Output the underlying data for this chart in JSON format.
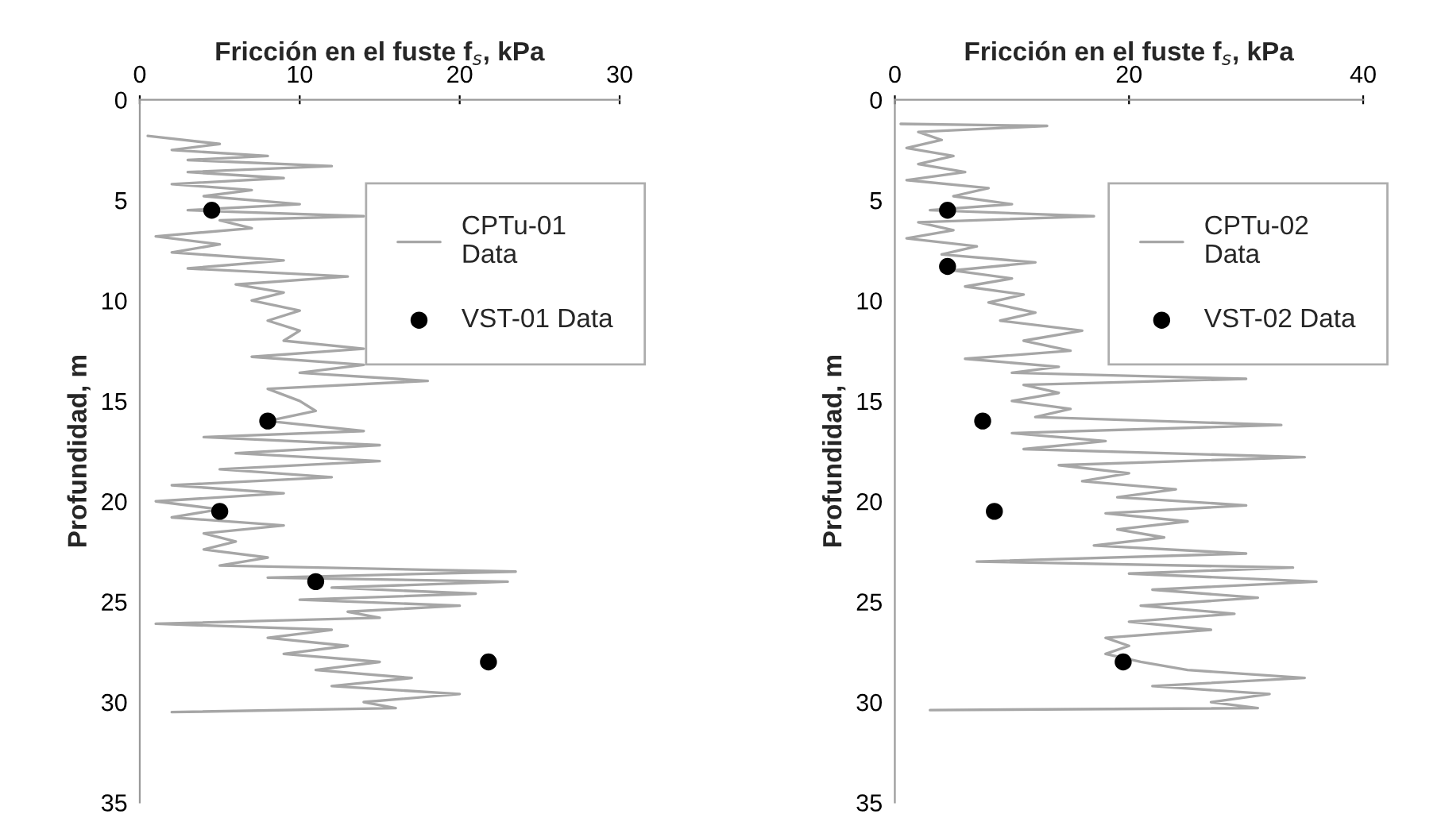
{
  "chart_data": [
    {
      "type": "line",
      "xlabel": "Fricción en el fuste f$_{s}$, kPa",
      "ylabel": "Profundidad, m",
      "xlim": [
        0,
        30
      ],
      "xticks": [
        0,
        10,
        20,
        30
      ],
      "ylim": [
        35,
        0
      ],
      "yticks": [
        0,
        5,
        10,
        15,
        20,
        25,
        30,
        35
      ],
      "grid": false,
      "legend": "top right",
      "series": [
        {
          "name": "CPTu-01\nData",
          "color": "#a6a6a6",
          "marker": "none",
          "x": [
            0.5,
            5,
            2,
            8,
            3,
            12,
            3,
            9,
            2,
            7,
            4,
            10,
            3,
            14,
            5,
            7,
            1,
            5,
            2,
            9,
            3,
            13,
            6,
            9,
            7,
            10,
            8,
            10,
            9,
            14,
            7,
            14,
            10,
            18,
            8,
            10,
            11,
            8,
            14,
            4,
            15,
            6,
            15,
            5,
            12,
            2,
            9,
            1,
            5,
            2,
            9,
            4,
            6,
            4,
            8,
            5,
            23.5,
            8,
            23,
            12,
            21,
            10,
            20,
            13,
            15,
            1,
            12,
            8,
            13,
            9,
            15,
            11,
            17,
            12,
            20,
            14,
            16,
            2
          ],
          "values": [
            1.8,
            2.2,
            2.5,
            2.8,
            3.0,
            3.3,
            3.6,
            3.9,
            4.2,
            4.5,
            4.8,
            5.2,
            5.5,
            5.8,
            6.0,
            6.4,
            6.8,
            7.2,
            7.6,
            8.0,
            8.4,
            8.8,
            9.2,
            9.6,
            10.0,
            10.5,
            11.0,
            11.5,
            12.0,
            12.4,
            12.8,
            13.2,
            13.6,
            14.0,
            14.4,
            15.0,
            15.5,
            16.0,
            16.5,
            16.8,
            17.2,
            17.6,
            18.0,
            18.4,
            18.8,
            19.2,
            19.6,
            20.0,
            20.4,
            20.8,
            21.2,
            21.6,
            22.0,
            22.4,
            22.8,
            23.2,
            23.5,
            23.8,
            24.0,
            24.3,
            24.6,
            24.9,
            25.2,
            25.5,
            25.8,
            26.1,
            26.4,
            26.8,
            27.2,
            27.6,
            28.0,
            28.4,
            28.8,
            29.2,
            29.6,
            30.0,
            30.3,
            30.5
          ]
        },
        {
          "name": "VST-01 Data",
          "type": "scatter",
          "color": "#000000",
          "marker": "circle",
          "x": [
            4.5,
            8,
            5,
            11,
            21.8
          ],
          "values": [
            5.5,
            16,
            20.5,
            24,
            28
          ]
        }
      ]
    },
    {
      "type": "line",
      "xlabel": "Fricción en el fuste f$_{s}$, kPa",
      "ylabel": "Profundidad, m",
      "xlim": [
        0,
        40
      ],
      "xticks": [
        0,
        20,
        40
      ],
      "ylim": [
        35,
        0
      ],
      "yticks": [
        0,
        5,
        10,
        15,
        20,
        25,
        30,
        35
      ],
      "grid": false,
      "legend": "top right",
      "series": [
        {
          "name": "CPTu-02\nData",
          "color": "#a6a6a6",
          "marker": "none",
          "x": [
            0.5,
            13,
            2,
            4,
            1,
            5,
            2,
            6,
            1,
            8,
            5,
            10,
            3,
            17,
            2,
            5,
            1,
            7,
            4,
            12,
            5,
            10,
            6,
            11,
            8,
            12,
            9,
            16,
            11,
            15,
            6,
            14,
            10,
            30,
            11,
            14,
            10,
            15,
            12,
            33,
            10,
            18,
            11,
            35,
            14,
            20,
            16,
            24,
            19,
            30,
            18,
            25,
            19,
            23,
            17,
            30,
            7,
            34,
            20,
            36,
            22,
            31,
            21,
            29,
            20,
            27,
            18,
            20,
            18,
            21,
            25,
            35,
            22,
            32,
            27,
            31,
            3
          ],
          "values": [
            1.2,
            1.3,
            1.6,
            2.0,
            2.4,
            2.8,
            3.2,
            3.6,
            4.0,
            4.4,
            4.8,
            5.2,
            5.5,
            5.8,
            6.1,
            6.5,
            6.9,
            7.3,
            7.7,
            8.1,
            8.5,
            8.9,
            9.3,
            9.7,
            10.1,
            10.6,
            11.0,
            11.5,
            12.0,
            12.5,
            12.9,
            13.3,
            13.6,
            13.9,
            14.2,
            14.6,
            15.0,
            15.4,
            15.8,
            16.2,
            16.6,
            17.0,
            17.4,
            17.8,
            18.2,
            18.6,
            19.0,
            19.4,
            19.8,
            20.2,
            20.6,
            21.0,
            21.4,
            21.8,
            22.2,
            22.6,
            23.0,
            23.3,
            23.6,
            24.0,
            24.4,
            24.8,
            25.2,
            25.6,
            26.0,
            26.4,
            26.8,
            27.2,
            27.6,
            28.0,
            28.4,
            28.8,
            29.2,
            29.6,
            30.0,
            30.3,
            30.4
          ]
        },
        {
          "name": "VST-02 Data",
          "type": "scatter",
          "color": "#000000",
          "marker": "circle",
          "x": [
            4.5,
            4.5,
            7.5,
            8.5,
            19.5
          ],
          "values": [
            5.5,
            8.3,
            16,
            20.5,
            28
          ]
        }
      ]
    }
  ]
}
